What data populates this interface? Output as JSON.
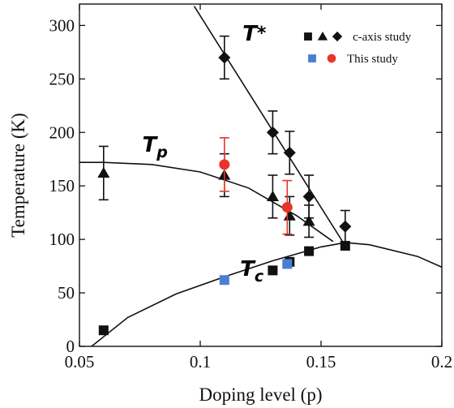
{
  "chart_data": {
    "type": "scatter",
    "xlabel": "Doping level (p)",
    "ylabel": "Temperature (K)",
    "xlim": [
      0.05,
      0.2
    ],
    "ylim": [
      0,
      320
    ],
    "x_ticks": [
      "0.05",
      "0.1",
      "0.15",
      "0.2"
    ],
    "x_tick_values": [
      0.05,
      0.1,
      0.15,
      0.2
    ],
    "y_ticks": [
      "0",
      "50",
      "100",
      "150",
      "200",
      "250",
      "300"
    ],
    "y_tick_values": [
      0,
      50,
      100,
      150,
      200,
      250,
      300
    ],
    "legend": {
      "position": "top-right",
      "entries": [
        {
          "label": "c-axis study",
          "markers": [
            "square",
            "triangle",
            "diamond"
          ],
          "color": "#111111"
        },
        {
          "label": "This study",
          "markers": [
            "square",
            "circle"
          ],
          "colors": [
            "#4a7fd0",
            "#e8342a"
          ]
        }
      ]
    },
    "curve_labels": {
      "tstar": {
        "main": "T",
        "sup": "*"
      },
      "tp": {
        "main": "T",
        "sub": "p"
      },
      "tc": {
        "main": "T",
        "sub": "c"
      }
    },
    "series": [
      {
        "name": "Tc",
        "marker": "square",
        "color": "#111111",
        "x": [
          0.06,
          0.13,
          0.137,
          0.145,
          0.16
        ],
        "y": [
          15,
          71,
          79,
          89,
          94
        ]
      },
      {
        "name": "Tp",
        "marker": "triangle",
        "color": "#111111",
        "x": [
          0.06,
          0.11,
          0.13,
          0.137,
          0.145
        ],
        "y": [
          162,
          160,
          140,
          122,
          117
        ],
        "yerr": [
          25,
          20,
          20,
          18,
          15
        ]
      },
      {
        "name": "T*",
        "marker": "diamond",
        "color": "#111111",
        "x": [
          0.11,
          0.13,
          0.137,
          0.145,
          0.16
        ],
        "y": [
          270,
          200,
          181,
          140,
          112
        ],
        "yerr": [
          20,
          20,
          20,
          20,
          15
        ]
      },
      {
        "name": "Tc",
        "marker": "square",
        "color": "#4a7fd0",
        "x": [
          0.11,
          0.136
        ],
        "y": [
          62,
          77
        ]
      },
      {
        "name": "Tp",
        "marker": "circle",
        "color": "#e8342a",
        "x": [
          0.11,
          0.136
        ],
        "y": [
          170,
          130
        ],
        "yerr": [
          25,
          25
        ]
      }
    ],
    "fit_lines": {
      "tc_dome": {
        "x": [
          0.055,
          0.07,
          0.09,
          0.11,
          0.13,
          0.15,
          0.16,
          0.17,
          0.19,
          0.2
        ],
        "y": [
          0,
          27,
          49,
          65,
          80,
          93,
          97,
          95,
          84,
          74
        ]
      },
      "tp_curve": {
        "x": [
          0.05,
          0.06,
          0.08,
          0.1,
          0.12,
          0.14,
          0.155
        ],
        "y": [
          172,
          172,
          170,
          163,
          148,
          122,
          98
        ]
      },
      "tstar_line": {
        "x": [
          0.0975,
          0.16
        ],
        "y": [
          318,
          94
        ]
      }
    }
  }
}
